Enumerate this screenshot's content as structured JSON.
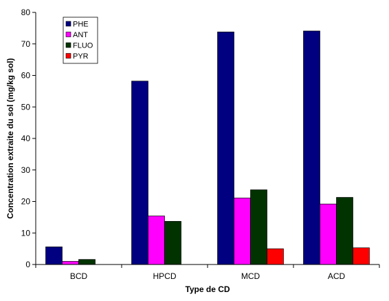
{
  "chart_data": {
    "type": "bar",
    "title": "",
    "xlabel": "Type de CD",
    "ylabel": "Concentration extraite du sol (mg/kg sol)",
    "categories": [
      "BCD",
      "HPCD",
      "MCD",
      "ACD"
    ],
    "ylim": [
      0,
      80
    ],
    "yticks": [
      0,
      10,
      20,
      30,
      40,
      50,
      60,
      70,
      80
    ],
    "grid": false,
    "legend_position": "top-left",
    "series": [
      {
        "name": "PHE",
        "color": "#000080",
        "values": [
          5.6,
          58.2,
          73.8,
          74.1
        ]
      },
      {
        "name": "ANT",
        "color": "#ff00ff",
        "values": [
          1.0,
          15.4,
          21.1,
          19.2
        ]
      },
      {
        "name": "FLUO",
        "color": "#003300",
        "values": [
          1.6,
          13.7,
          23.7,
          21.3
        ]
      },
      {
        "name": "PYR",
        "color": "#ff0000",
        "values": [
          0,
          0,
          5.0,
          5.3
        ]
      }
    ]
  }
}
